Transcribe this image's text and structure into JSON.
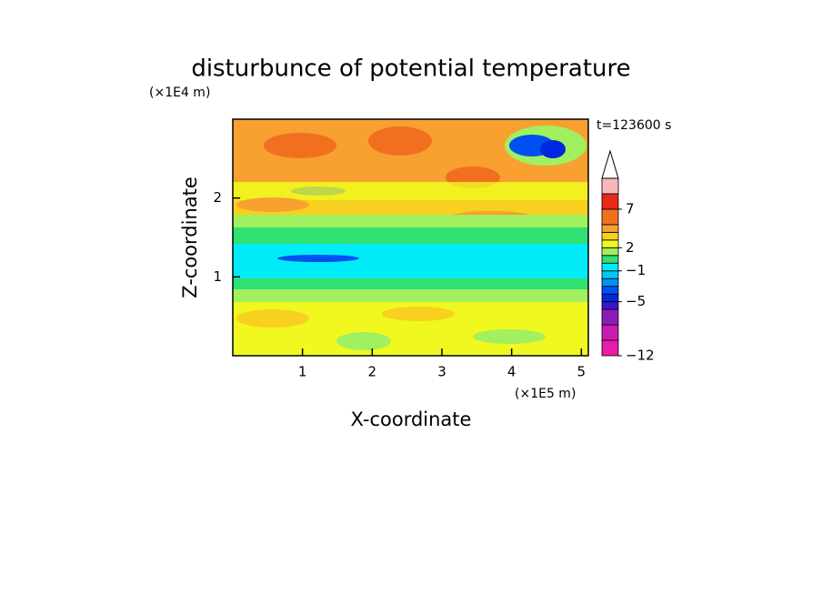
{
  "chart_data": {
    "type": "contour",
    "title": "disturbunce of potential temperature",
    "x_label": "X-coordinate",
    "y_label": "Z-coordinate",
    "x_unit": "(×1E5 m)",
    "y_unit": "(×1E4 m)",
    "time_label": "t=123600 s",
    "xlim": [
      0,
      5.1
    ],
    "ylim": [
      0,
      3
    ],
    "xticks": [
      1,
      2,
      3,
      4,
      5
    ],
    "yticks": [
      1,
      2
    ],
    "colorbar": {
      "lim": [
        -12,
        11
      ],
      "extend": "max",
      "levels": [
        -12,
        -10,
        -8,
        -6,
        -5,
        -4,
        -3,
        -2,
        -1,
        0,
        1,
        2,
        3,
        4,
        5,
        7,
        9,
        11
      ],
      "colors": [
        "#e81ca8",
        "#c81cb0",
        "#8c1cb8",
        "#3c14c8",
        "#0028e0",
        "#0050f0",
        "#0090f8",
        "#00c8f8",
        "#00ecf8",
        "#30e070",
        "#a0f060",
        "#f0f820",
        "#f8d020",
        "#f8a030",
        "#f07020",
        "#e82818",
        "#f8b8b8"
      ],
      "ticks": [
        {
          "value": -12,
          "label": "−12"
        },
        {
          "value": -5,
          "label": "−5"
        },
        {
          "value": -1,
          "label": "−1"
        },
        2,
        7
      ]
    }
  }
}
